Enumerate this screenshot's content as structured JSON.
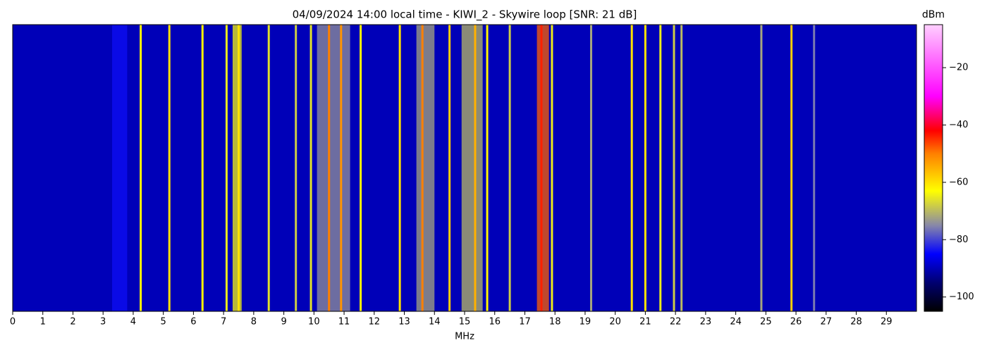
{
  "chart_data": {
    "type": "spectrogram",
    "title": "04/09/2024 14:00 local time - KIWI_2 - Skywire loop [SNR: 21 dB]",
    "xlabel": "MHz",
    "colorbar_label": "dBm",
    "xlim": [
      0,
      30
    ],
    "xticks": [
      0,
      1,
      2,
      3,
      4,
      5,
      6,
      7,
      8,
      9,
      10,
      11,
      12,
      13,
      14,
      15,
      16,
      17,
      18,
      19,
      20,
      21,
      22,
      23,
      24,
      25,
      26,
      27,
      28,
      29
    ],
    "clim": [
      -105,
      -5
    ],
    "cticks": [
      {
        "value": -100,
        "label": "−100"
      },
      {
        "value": -80,
        "label": "−80"
      },
      {
        "value": -60,
        "label": "−60"
      },
      {
        "value": -40,
        "label": "−40"
      },
      {
        "value": -20,
        "label": "−20"
      }
    ],
    "colormap": [
      {
        "value": -105,
        "color": "#000000"
      },
      {
        "value": -95,
        "color": "#000070"
      },
      {
        "value": -85,
        "color": "#0000ff"
      },
      {
        "value": -75,
        "color": "#8888a8"
      },
      {
        "value": -63,
        "color": "#ffff00"
      },
      {
        "value": -50,
        "color": "#ff8000"
      },
      {
        "value": -42,
        "color": "#ff0000"
      },
      {
        "value": -30,
        "color": "#ff00ff"
      },
      {
        "value": -5,
        "color": "#ffd0ff"
      }
    ],
    "noise_floor": -90,
    "bands": {
      "start": [
        3.3,
        7.3,
        10.1,
        13.4,
        14.9,
        17.4
      ],
      "end": [
        3.8,
        7.6,
        11.2,
        14.0,
        15.6,
        17.8
      ],
      "values": [
        -84,
        -64,
        -74,
        -72,
        -70,
        -48
      ]
    },
    "signals": {
      "x": [
        4.25,
        5.2,
        6.3,
        7.1,
        7.5,
        8.5,
        9.4,
        9.9,
        10.5,
        10.9,
        11.55,
        12.85,
        13.6,
        14.5,
        15.35,
        15.75,
        16.5,
        17.55,
        17.9,
        19.2,
        20.55,
        21.0,
        21.5,
        21.95,
        22.2,
        24.85,
        25.85,
        26.6
      ],
      "values": [
        -62,
        -60,
        -62,
        -65,
        -60,
        -66,
        -68,
        -66,
        -50,
        -52,
        -62,
        -60,
        -50,
        -58,
        -55,
        -62,
        -68,
        -44,
        -65,
        -72,
        -60,
        -60,
        -65,
        -68,
        -70,
        -72,
        -58,
        -76
      ]
    }
  }
}
